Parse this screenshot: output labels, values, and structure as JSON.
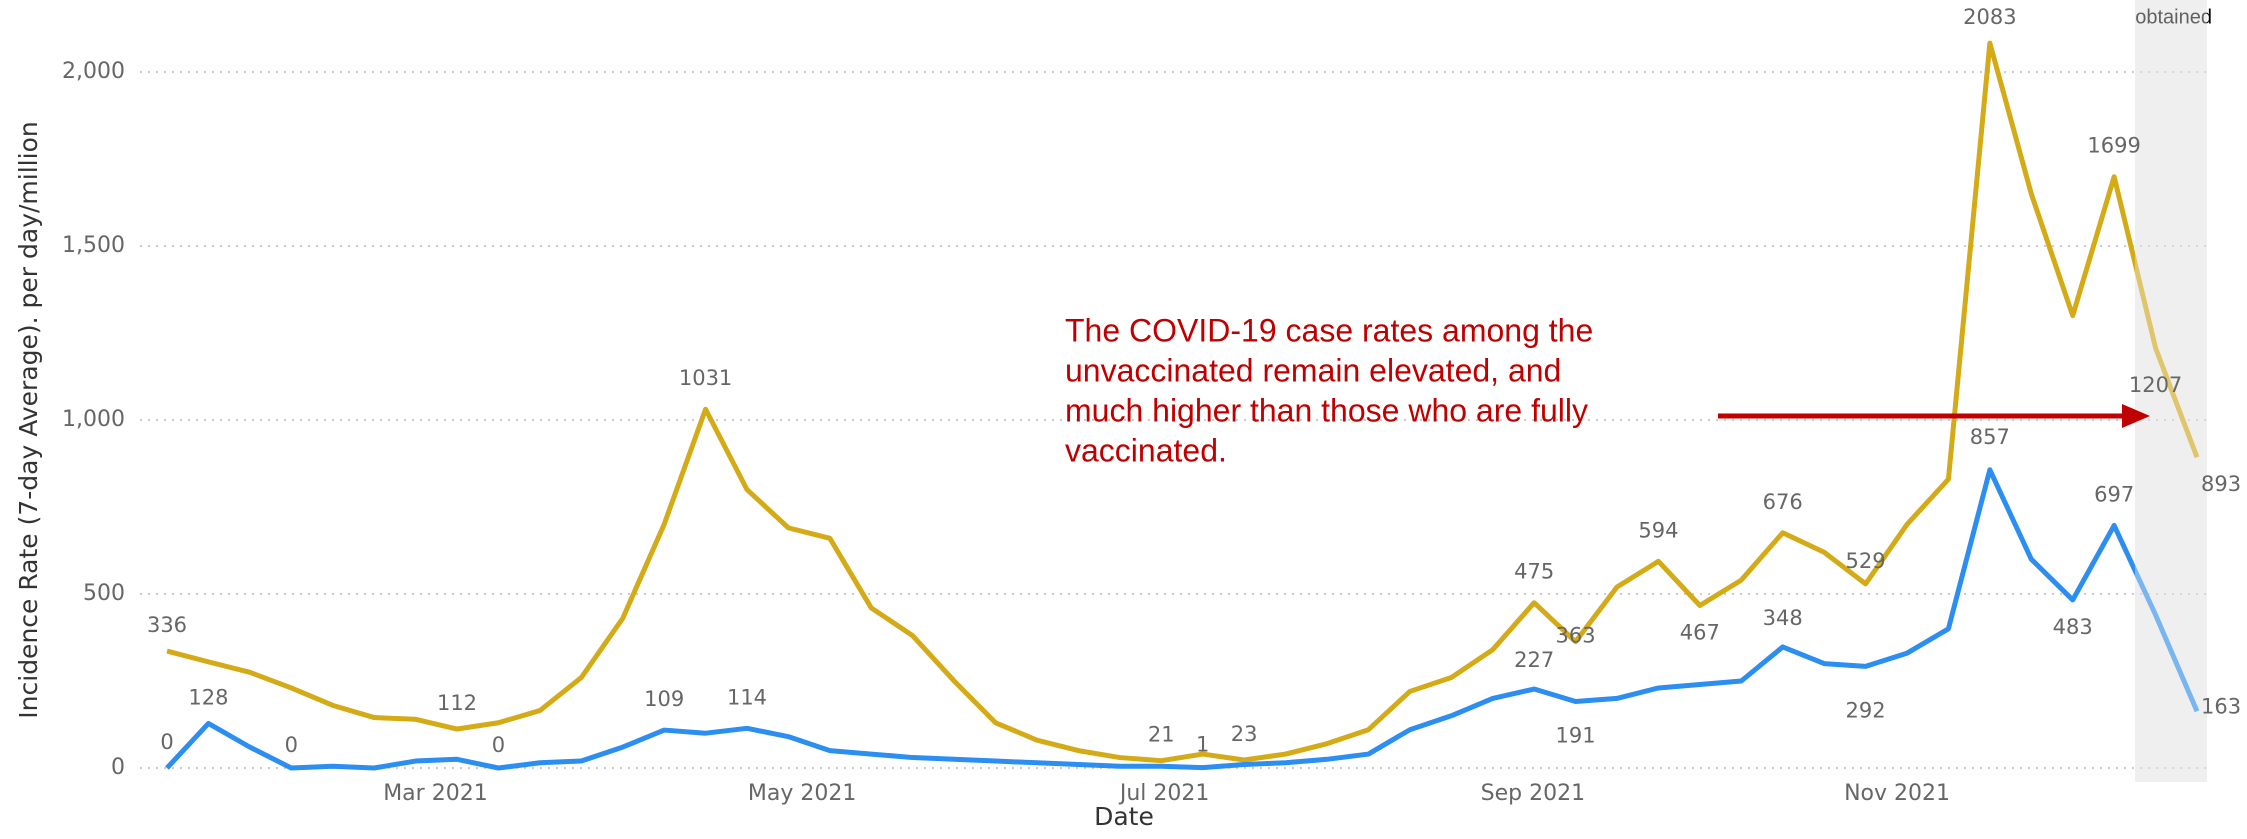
{
  "chart_data": {
    "type": "line",
    "ylabel": "Incidence Rate (7-day Average). per day/million",
    "xlabel": "Date",
    "note": "obtained",
    "annotation": [
      "The COVID-19 case rates among the",
      "unvaccinated remain elevated, and",
      "much higher than those who are fully",
      "vaccinated."
    ],
    "annotation_color": "#c00000",
    "xlim": [
      0,
      49
    ],
    "xticks": [
      {
        "value": 6.48,
        "label": "Mar 2021"
      },
      {
        "value": 15.33,
        "label": "May 2021"
      },
      {
        "value": 24.08,
        "label": "Jul 2021"
      },
      {
        "value": 32.97,
        "label": "Sep 2021"
      },
      {
        "value": 41.76,
        "label": "Nov 2021"
      }
    ],
    "ylim": [
      0,
      2000
    ],
    "yticks": [
      0,
      500,
      {
        "value": 1000,
        "label": "1,000"
      },
      {
        "value": 1500,
        "label": "1,500"
      },
      {
        "value": 2000,
        "label": "2,000"
      }
    ],
    "grid": true,
    "series": [
      {
        "color": "#d4aa17",
        "values": [
          336,
          305,
          275,
          230,
          180,
          145,
          140,
          112,
          130,
          165,
          260,
          430,
          700,
          1031,
          800,
          690,
          660,
          460,
          380,
          250,
          130,
          80,
          50,
          30,
          21,
          40,
          23,
          40,
          70,
          110,
          220,
          260,
          340,
          475,
          363,
          520,
          594,
          467,
          540,
          676,
          620,
          529,
          700,
          830,
          2083,
          1650,
          1300,
          1699,
          1207,
          893
        ]
      },
      {
        "color": "#2b8ef0",
        "values": [
          0,
          128,
          60,
          0,
          5,
          0,
          20,
          25,
          0,
          15,
          20,
          60,
          109,
          100,
          114,
          90,
          50,
          40,
          30,
          25,
          20,
          15,
          10,
          5,
          5,
          1,
          10,
          15,
          25,
          40,
          110,
          150,
          200,
          227,
          191,
          200,
          230,
          240,
          250,
          348,
          300,
          292,
          330,
          400,
          857,
          600,
          483,
          697,
          440,
          163
        ]
      }
    ]
  }
}
